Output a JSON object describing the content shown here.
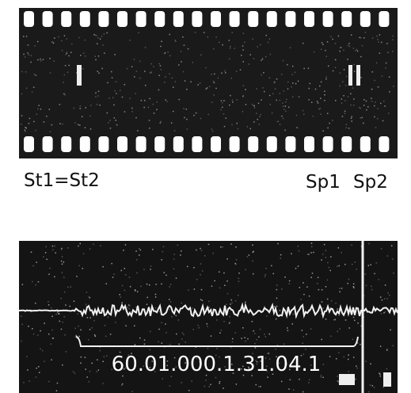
{
  "top_panel": {
    "start_label": "St1=St2",
    "stop_labels": [
      "Sp1",
      "Sp2"
    ]
  },
  "bottom_panel": {
    "code_label": "60.01.000.1.31.04.1"
  }
}
